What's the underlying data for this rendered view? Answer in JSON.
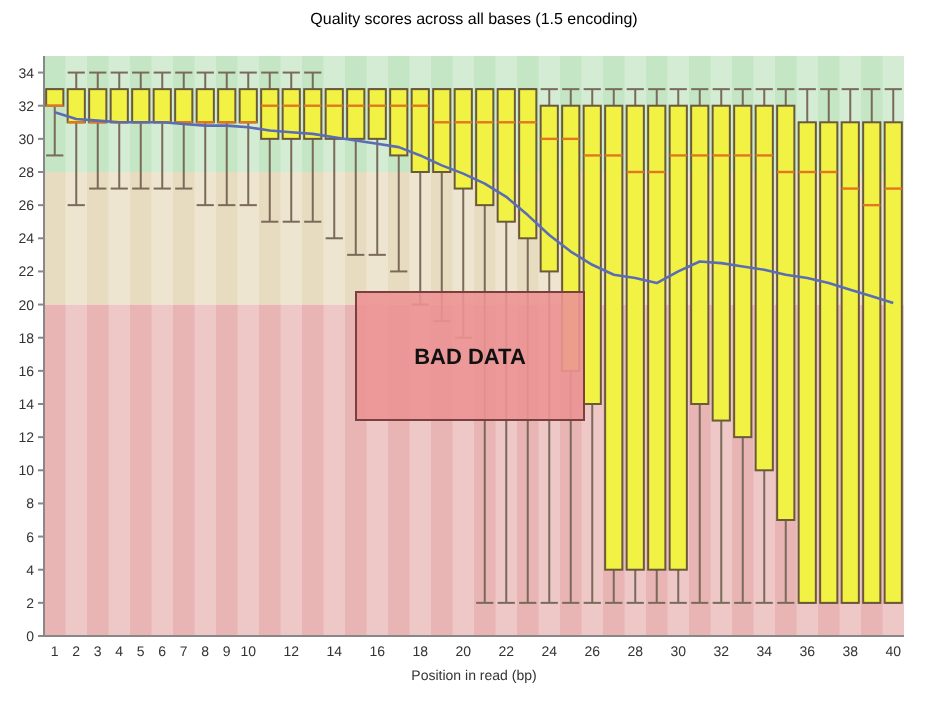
{
  "chart_data": {
    "type": "box",
    "title": "Quality scores across all bases (1.5 encoding)",
    "xlabel": "Position in read (bp)",
    "categories": [
      "1",
      "2",
      "3",
      "4",
      "5",
      "6",
      "7",
      "8",
      "9",
      "10",
      null,
      "12",
      null,
      "14",
      null,
      "16",
      null,
      "18",
      null,
      "20",
      null,
      "22",
      null,
      "24",
      null,
      "26",
      null,
      "28",
      null,
      "30",
      null,
      "32",
      null,
      "34",
      null,
      "36",
      null,
      "38",
      null,
      "40"
    ],
    "ylim": [
      0,
      35
    ],
    "yticks": [
      0,
      2,
      4,
      6,
      8,
      10,
      12,
      14,
      16,
      18,
      20,
      22,
      24,
      26,
      28,
      30,
      32,
      34
    ],
    "bands": [
      {
        "axis": "y",
        "from": 28,
        "to": 35,
        "color": "#c4e6c4"
      },
      {
        "axis": "y",
        "from": 20,
        "to": 28,
        "color": "#e8dcc0"
      },
      {
        "axis": "y",
        "from": 0,
        "to": 20,
        "color": "#e8b4b4"
      }
    ],
    "annotations": [
      "BAD DATA"
    ],
    "series": [
      {
        "color": "#f2f244",
        "boxes": [
          {
            "low": 29,
            "q1": 32,
            "median": 32,
            "q3": 33,
            "high": 33
          },
          {
            "low": 26,
            "q1": 31,
            "median": 31,
            "q3": 33,
            "high": 34
          },
          {
            "low": 27,
            "q1": 31,
            "median": 31,
            "q3": 33,
            "high": 34
          },
          {
            "low": 27,
            "q1": 31,
            "median": 31,
            "q3": 33,
            "high": 34
          },
          {
            "low": 27,
            "q1": 31,
            "median": 31,
            "q3": 33,
            "high": 34
          },
          {
            "low": 27,
            "q1": 31,
            "median": 31,
            "q3": 33,
            "high": 34
          },
          {
            "low": 27,
            "q1": 31,
            "median": 31,
            "q3": 33,
            "high": 34
          },
          {
            "low": 26,
            "q1": 31,
            "median": 31,
            "q3": 33,
            "high": 34
          },
          {
            "low": 26,
            "q1": 31,
            "median": 31,
            "q3": 33,
            "high": 34
          },
          {
            "low": 26,
            "q1": 31,
            "median": 31,
            "q3": 33,
            "high": 34
          },
          {
            "low": 25,
            "q1": 30,
            "median": 32,
            "q3": 33,
            "high": 34
          },
          {
            "low": 25,
            "q1": 30,
            "median": 32,
            "q3": 33,
            "high": 34
          },
          {
            "low": 25,
            "q1": 30,
            "median": 32,
            "q3": 33,
            "high": 34
          },
          {
            "low": 24,
            "q1": 30,
            "median": 32,
            "q3": 33,
            "high": 33
          },
          {
            "low": 23,
            "q1": 30,
            "median": 32,
            "q3": 33,
            "high": 33
          },
          {
            "low": 23,
            "q1": 30,
            "median": 32,
            "q3": 33,
            "high": 33
          },
          {
            "low": 22,
            "q1": 29,
            "median": 32,
            "q3": 33,
            "high": 33
          },
          {
            "low": 20,
            "q1": 28,
            "median": 32,
            "q3": 33,
            "high": 33
          },
          {
            "low": 19,
            "q1": 28,
            "median": 31,
            "q3": 33,
            "high": 33
          },
          {
            "low": 18,
            "q1": 27,
            "median": 31,
            "q3": 33,
            "high": 33
          },
          {
            "low": 2,
            "q1": 26,
            "median": 31,
            "q3": 33,
            "high": 33
          },
          {
            "low": 2,
            "q1": 25,
            "median": 31,
            "q3": 33,
            "high": 33
          },
          {
            "low": 2,
            "q1": 24,
            "median": 31,
            "q3": 33,
            "high": 33
          },
          {
            "low": 2,
            "q1": 22,
            "median": 30,
            "q3": 32,
            "high": 33
          },
          {
            "low": 2,
            "q1": 16,
            "median": 30,
            "q3": 32,
            "high": 33
          },
          {
            "low": 2,
            "q1": 14,
            "median": 29,
            "q3": 32,
            "high": 33
          },
          {
            "low": 2,
            "q1": 4,
            "median": 29,
            "q3": 32,
            "high": 33
          },
          {
            "low": 2,
            "q1": 4,
            "median": 28,
            "q3": 32,
            "high": 33
          },
          {
            "low": 2,
            "q1": 4,
            "median": 28,
            "q3": 32,
            "high": 33
          },
          {
            "low": 2,
            "q1": 4,
            "median": 29,
            "q3": 32,
            "high": 33
          },
          {
            "low": 2,
            "q1": 14,
            "median": 29,
            "q3": 32,
            "high": 33
          },
          {
            "low": 2,
            "q1": 13,
            "median": 29,
            "q3": 32,
            "high": 33
          },
          {
            "low": 2,
            "q1": 12,
            "median": 29,
            "q3": 32,
            "high": 33
          },
          {
            "low": 2,
            "q1": 10,
            "median": 29,
            "q3": 32,
            "high": 33
          },
          {
            "low": 2,
            "q1": 7,
            "median": 28,
            "q3": 32,
            "high": 33
          },
          {
            "low": 2,
            "q1": 2,
            "median": 28,
            "q3": 31,
            "high": 33
          },
          {
            "low": 2,
            "q1": 2,
            "median": 28,
            "q3": 31,
            "high": 33
          },
          {
            "low": 2,
            "q1": 2,
            "median": 27,
            "q3": 31,
            "high": 33
          },
          {
            "low": 2,
            "q1": 2,
            "median": 26,
            "q3": 31,
            "high": 33
          },
          {
            "low": 2,
            "q1": 2,
            "median": 27,
            "q3": 31,
            "high": 33
          }
        ]
      },
      {
        "type": "line",
        "color": "#5a6cb4",
        "values": [
          31.6,
          31.2,
          31.1,
          31.0,
          31.0,
          31.0,
          30.9,
          30.8,
          30.8,
          30.7,
          30.5,
          30.4,
          30.3,
          30.1,
          29.9,
          29.7,
          29.5,
          29.0,
          28.4,
          27.9,
          27.3,
          26.5,
          25.4,
          24.2,
          23.2,
          22.4,
          21.8,
          21.6,
          21.3,
          22.0,
          22.6,
          22.5,
          22.3,
          22.1,
          21.8,
          21.6,
          21.3,
          20.9,
          20.5,
          20.1
        ]
      }
    ]
  }
}
